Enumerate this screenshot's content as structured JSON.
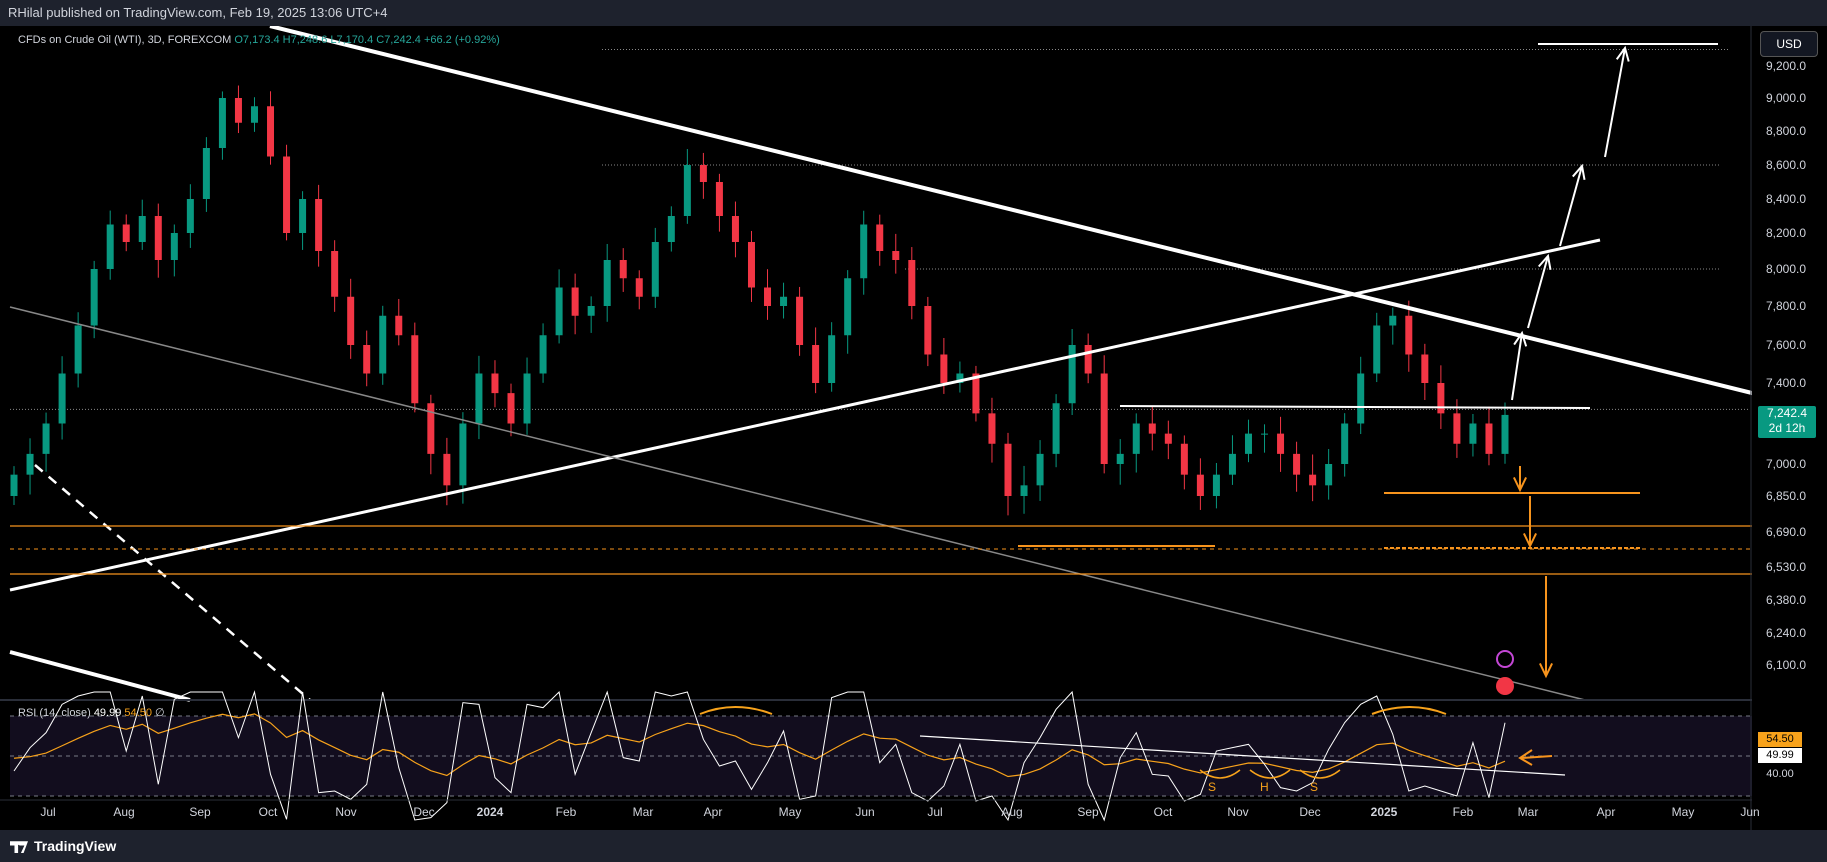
{
  "header": {
    "published": "RHilal published on TradingView.com, Feb 19, 2025 13:06 UTC+4"
  },
  "legend": {
    "symbol": "CFDs on Crude Oil (WTI), 3D, FOREXCOM",
    "ohlc": "O7,173.4  H7,248.6  L7,170.4  C7,242.4  +66.2 (+0.92%)"
  },
  "rsi_legend": {
    "label": "RSI (14, close)",
    "value1": "49.99",
    "value2": "54.50",
    "symbol": "∅"
  },
  "currency_button": "USD",
  "price_tag": {
    "price": "7,242.4",
    "countdown": "2d 12h"
  },
  "rsi_tags": {
    "upper": "54.50",
    "lower": "49.99",
    "level": "40.00"
  },
  "footer": {
    "brand": "TradingView"
  },
  "colors": {
    "up": "#089981",
    "down": "#f23645",
    "support": "#f7941d",
    "rsi_ma": "#f7a21b",
    "background": "#000000"
  },
  "chart_data": {
    "type": "candlestick",
    "title": "CFDs on Crude Oil (WTI), 3D, FOREXCOM",
    "price_axis_labels": [
      "9,200.0",
      "9,000.0",
      "8,800.0",
      "8,600.0",
      "8,400.0",
      "8,200.0",
      "8,000.0",
      "7,800.0",
      "7,600.0",
      "7,400.0",
      "7,000.0",
      "6,850.0",
      "6,690.0",
      "6,530.0",
      "6,380.0",
      "6,240.0",
      "6,100.0"
    ],
    "x_tick_labels": [
      "Jul",
      "Aug",
      "Sep",
      "Oct",
      "Nov",
      "Dec",
      "2024",
      "Feb",
      "Mar",
      "Apr",
      "May",
      "Jun",
      "Jul",
      "Aug",
      "Sep",
      "Oct",
      "Nov",
      "Dec",
      "2025",
      "Feb",
      "Mar",
      "Apr",
      "May",
      "Jun"
    ],
    "last_price": 7242.4,
    "close_series": [
      6950,
      7050,
      7200,
      7450,
      7700,
      8000,
      8250,
      8150,
      8300,
      8050,
      8200,
      8400,
      8700,
      9000,
      8850,
      8950,
      8650,
      8200,
      8400,
      8100,
      7850,
      7600,
      7450,
      7750,
      7650,
      7300,
      7050,
      6900,
      7200,
      7450,
      7350,
      7200,
      7450,
      7650,
      7900,
      7750,
      7800,
      8050,
      7950,
      7850,
      8150,
      8300,
      8600,
      8500,
      8300,
      8150,
      7900,
      7800,
      7850,
      7600,
      7400,
      7650,
      7950,
      8250,
      8100,
      8050,
      7800,
      7550,
      7400,
      7450,
      7250,
      7100,
      6850,
      6900,
      7050,
      7300,
      7600,
      7450,
      7000,
      7050,
      7200,
      7150,
      7100,
      6950,
      6850,
      6950,
      7050,
      7150,
      7150,
      7050,
      6950,
      6900,
      7000,
      7200,
      7450,
      7700,
      7750,
      7550,
      7400,
      7250,
      7100,
      7200,
      7050,
      7242.4
    ],
    "support_levels": [
      6850,
      6690,
      6640,
      6530
    ],
    "resistance_levels": [
      9300,
      8600,
      8000,
      7300
    ],
    "rsi": {
      "levels": [
        70,
        50,
        30
      ],
      "rsi_last": 49.99,
      "ma_last": 54.5,
      "visible_level_label": "40.00",
      "pattern_labels": [
        "S",
        "H",
        "S"
      ]
    }
  }
}
